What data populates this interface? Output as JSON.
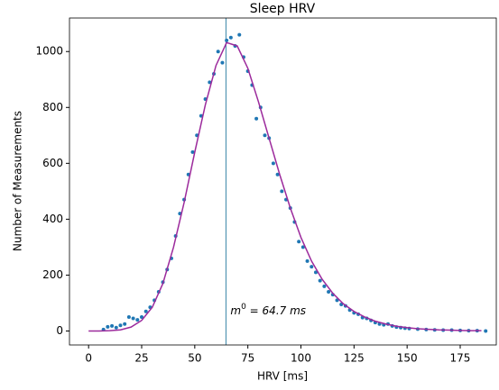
{
  "chart_data": {
    "type": "scatter",
    "title": "Sleep HRV",
    "xlabel": "HRV [ms]",
    "ylabel": "Number of Measurements",
    "xlim": [
      -9,
      192
    ],
    "ylim": [
      -50,
      1120
    ],
    "xticks": [
      0,
      25,
      50,
      75,
      100,
      125,
      150,
      175
    ],
    "yticks": [
      0,
      200,
      400,
      600,
      800,
      1000
    ],
    "vline": {
      "value": 64.7,
      "color": "#3a87a8"
    },
    "annotation": {
      "base": "m",
      "sup": "0",
      "rest": " = 64.7 ms"
    },
    "series": [
      {
        "type": "scatter",
        "color": "#1f77b4",
        "x": [
          7,
          9,
          11,
          13,
          15,
          17,
          19,
          21,
          23,
          25,
          27,
          29,
          31,
          33,
          35,
          37,
          39,
          41,
          43,
          45,
          47,
          49,
          51,
          53,
          55,
          57,
          59,
          61,
          63,
          65,
          67,
          69,
          71,
          73,
          75,
          77,
          79,
          81,
          83,
          85,
          87,
          89,
          91,
          93,
          95,
          97,
          99,
          101,
          103,
          105,
          107,
          109,
          111,
          113,
          115,
          117,
          119,
          121,
          123,
          125,
          127,
          129,
          131,
          133,
          135,
          137,
          139,
          141,
          143,
          145,
          147,
          149,
          151,
          155,
          159,
          163,
          167,
          171,
          175,
          179,
          183,
          187
        ],
        "values": [
          5,
          15,
          18,
          12,
          20,
          25,
          50,
          45,
          40,
          50,
          70,
          85,
          110,
          140,
          175,
          220,
          260,
          340,
          420,
          470,
          560,
          640,
          700,
          770,
          830,
          890,
          920,
          1000,
          960,
          1040,
          1050,
          1020,
          1060,
          980,
          930,
          880,
          760,
          800,
          700,
          690,
          600,
          560,
          500,
          470,
          440,
          390,
          320,
          300,
          250,
          230,
          210,
          180,
          160,
          140,
          130,
          110,
          95,
          90,
          75,
          65,
          60,
          48,
          45,
          38,
          30,
          25,
          22,
          25,
          18,
          14,
          12,
          10,
          9,
          7,
          5,
          4,
          3,
          3,
          2,
          1,
          1,
          0
        ]
      },
      {
        "type": "line",
        "color": "#9c2a9c",
        "x": [
          0,
          5,
          10,
          15,
          20,
          25,
          30,
          35,
          40,
          45,
          50,
          55,
          60,
          65,
          70,
          75,
          80,
          85,
          90,
          95,
          100,
          105,
          110,
          115,
          120,
          125,
          130,
          135,
          140,
          145,
          150,
          155,
          160,
          165,
          170,
          175,
          180,
          185
        ],
        "values": [
          0,
          0,
          1,
          4,
          14,
          38,
          85,
          170,
          300,
          460,
          640,
          810,
          950,
          1032,
          1020,
          940,
          820,
          690,
          560,
          440,
          335,
          250,
          185,
          135,
          97,
          70,
          50,
          35,
          25,
          17,
          12,
          8,
          6,
          4,
          3,
          2,
          1,
          1
        ]
      }
    ]
  }
}
